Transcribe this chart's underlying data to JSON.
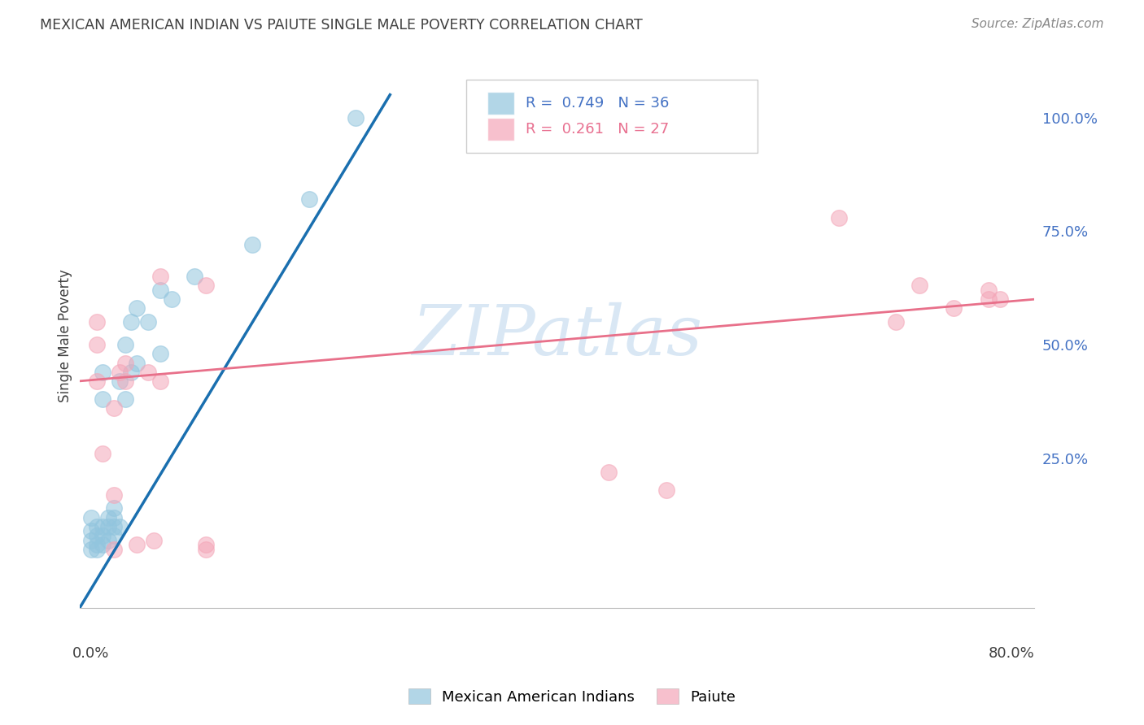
{
  "title": "MEXICAN AMERICAN INDIAN VS PAIUTE SINGLE MALE POVERTY CORRELATION CHART",
  "source": "Source: ZipAtlas.com",
  "ylabel": "Single Male Poverty",
  "ytick_labels": [
    "100.0%",
    "75.0%",
    "50.0%",
    "25.0%"
  ],
  "ytick_values": [
    1.0,
    0.75,
    0.5,
    0.25
  ],
  "xlim": [
    -0.01,
    0.82
  ],
  "ylim": [
    -0.08,
    1.12
  ],
  "legend_blue_r": "0.749",
  "legend_blue_n": "36",
  "legend_pink_r": "0.261",
  "legend_pink_n": "27",
  "blue_color": "#92c5de",
  "pink_color": "#f4a6b8",
  "blue_line_color": "#1a6faf",
  "pink_line_color": "#e8708a",
  "blue_points_x": [
    0.0,
    0.0,
    0.0,
    0.0,
    0.005,
    0.005,
    0.005,
    0.005,
    0.01,
    0.01,
    0.01,
    0.01,
    0.01,
    0.015,
    0.015,
    0.015,
    0.02,
    0.02,
    0.02,
    0.02,
    0.025,
    0.025,
    0.03,
    0.03,
    0.035,
    0.035,
    0.04,
    0.04,
    0.05,
    0.06,
    0.06,
    0.07,
    0.09,
    0.14,
    0.19,
    0.23
  ],
  "blue_points_y": [
    0.05,
    0.07,
    0.09,
    0.12,
    0.05,
    0.06,
    0.08,
    0.1,
    0.06,
    0.08,
    0.1,
    0.38,
    0.44,
    0.07,
    0.1,
    0.12,
    0.08,
    0.1,
    0.12,
    0.14,
    0.1,
    0.42,
    0.38,
    0.5,
    0.44,
    0.55,
    0.46,
    0.58,
    0.55,
    0.48,
    0.62,
    0.6,
    0.65,
    0.72,
    0.82,
    1.0
  ],
  "pink_points_x": [
    0.005,
    0.005,
    0.005,
    0.01,
    0.02,
    0.02,
    0.02,
    0.025,
    0.03,
    0.03,
    0.04,
    0.05,
    0.055,
    0.06,
    0.06,
    0.1,
    0.1,
    0.1,
    0.45,
    0.5,
    0.65,
    0.7,
    0.72,
    0.75,
    0.78,
    0.78,
    0.79
  ],
  "pink_points_y": [
    0.42,
    0.5,
    0.55,
    0.26,
    0.05,
    0.17,
    0.36,
    0.44,
    0.42,
    0.46,
    0.06,
    0.44,
    0.07,
    0.42,
    0.65,
    0.05,
    0.06,
    0.63,
    0.22,
    0.18,
    0.78,
    0.55,
    0.63,
    0.58,
    0.6,
    0.62,
    0.6
  ],
  "blue_line_x": [
    -0.01,
    0.26
  ],
  "blue_line_y": [
    -0.08,
    1.05
  ],
  "pink_line_x": [
    -0.01,
    0.82
  ],
  "pink_line_y": [
    0.42,
    0.6
  ],
  "watermark_text": "ZIPatlas",
  "watermark_color": "#c0d8ee",
  "background_color": "#ffffff",
  "grid_color": "#dddddd",
  "ytick_color": "#4472c4",
  "title_color": "#404040",
  "source_color": "#888888"
}
